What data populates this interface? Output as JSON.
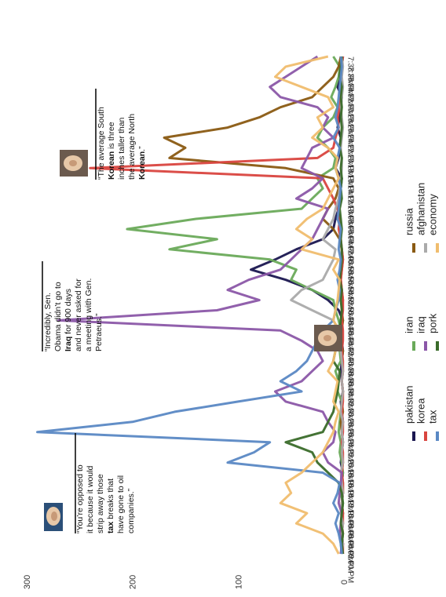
{
  "chart_data": {
    "type": "line",
    "title": "",
    "xlabel": "",
    "ylabel": "",
    "ylim": [
      0,
      300
    ],
    "y_ticks": [
      "0",
      "100",
      "200",
      "300"
    ],
    "orientation": "rotated-90-clockwise",
    "categories": [
      "6:00 PM",
      "6:02 PM",
      "6:04 PM",
      "6:06 PM",
      "6:08 PM",
      "6:10 PM",
      "6:12 PM",
      "6:14 PM",
      "6:16 PM",
      "6:18 PM",
      "6:20 PM",
      "6:22 PM",
      "6:24 PM",
      "6:26 PM",
      "6:28 PM",
      "6:30 PM",
      "6:32 PM",
      "6:34 PM",
      "6:36 PM",
      "6:38 PM",
      "6:40 PM",
      "6:42 PM",
      "6:44 PM",
      "6:46 PM",
      "6:48 PM",
      "6:50 PM",
      "6:52 PM",
      "6:54 PM",
      "6:56 PM",
      "6:58 PM",
      "7:00 PM",
      "7:02 PM",
      "7:04 PM",
      "7:06 PM",
      "7:08 PM",
      "7:10 PM",
      "7:12 PM",
      "7:14 PM",
      "7:16 PM",
      "7:18 PM",
      "7:20 PM",
      "7:22 PM",
      "7:24 PM",
      "7:26 PM",
      "7:28 PM",
      "7:30 PM",
      "7:32 PM",
      "7:34 PM",
      "7:36 PM",
      "7:38 PM"
    ],
    "series": [
      {
        "name": "pakistan",
        "color": "#1a1650",
        "values": [
          2,
          1,
          3,
          2,
          1,
          2,
          1,
          2,
          1,
          3,
          2,
          1,
          2,
          1,
          2,
          3,
          1,
          2,
          3,
          2,
          1,
          2,
          3,
          1,
          5,
          15,
          30,
          55,
          88,
          65,
          45,
          20,
          10,
          8,
          5,
          4,
          3,
          2,
          8,
          5,
          4,
          3,
          6,
          4,
          3,
          2,
          6,
          3,
          2,
          1
        ]
      },
      {
        "name": "iran",
        "color": "#6aaa5a",
        "values": [
          2,
          3,
          2,
          1,
          2,
          1,
          3,
          2,
          1,
          2,
          4,
          3,
          5,
          4,
          3,
          2,
          6,
          5,
          8,
          3,
          4,
          2,
          3,
          5,
          8,
          10,
          30,
          50,
          45,
          70,
          165,
          120,
          205,
          140,
          40,
          30,
          20,
          25,
          10,
          8,
          15,
          25,
          20,
          10,
          6,
          12,
          8,
          5,
          4,
          10
        ]
      },
      {
        "name": "russia",
        "color": "#8a5a12",
        "values": [
          1,
          2,
          1,
          2,
          1,
          2,
          1,
          1,
          2,
          1,
          2,
          1,
          2,
          3,
          1,
          2,
          1,
          2,
          1,
          2,
          1,
          3,
          2,
          1,
          2,
          1,
          2,
          3,
          2,
          1,
          2,
          4,
          10,
          20,
          15,
          8,
          5,
          10,
          55,
          165,
          150,
          170,
          110,
          80,
          60,
          30,
          20,
          10,
          5,
          3
        ]
      },
      {
        "name": "korea",
        "color": "#d9453f",
        "values": [
          1,
          1,
          2,
          1,
          1,
          2,
          1,
          1,
          2,
          1,
          1,
          2,
          1,
          1,
          2,
          1,
          1,
          2,
          1,
          1,
          2,
          1,
          1,
          2,
          1,
          1,
          2,
          3,
          2,
          1,
          2,
          3,
          5,
          4,
          6,
          10,
          15,
          20,
          240,
          25,
          10,
          8,
          5,
          6,
          4,
          3,
          2,
          3,
          2,
          1
        ]
      },
      {
        "name": "afghanistan",
        "color": "#aaaaaa",
        "values": [
          2,
          1,
          2,
          1,
          3,
          2,
          1,
          2,
          3,
          1,
          2,
          1,
          2,
          1,
          3,
          2,
          1,
          2,
          1,
          2,
          3,
          4,
          5,
          10,
          30,
          50,
          40,
          20,
          15,
          10,
          8,
          20,
          15,
          10,
          8,
          5,
          4,
          3,
          2,
          2,
          3,
          2,
          1,
          2,
          3,
          2,
          1,
          2,
          1,
          2
        ]
      },
      {
        "name": "iraq",
        "color": "#8b57a8",
        "values": [
          3,
          2,
          4,
          3,
          2,
          5,
          4,
          3,
          2,
          15,
          20,
          10,
          8,
          15,
          20,
          55,
          65,
          40,
          30,
          20,
          25,
          40,
          60,
          270,
          120,
          80,
          110,
          90,
          60,
          50,
          40,
          30,
          25,
          20,
          15,
          45,
          30,
          20,
          40,
          35,
          30,
          10,
          20,
          15,
          25,
          60,
          70,
          55,
          40,
          25
        ]
      },
      {
        "name": "pork",
        "color": "#3a6b2a",
        "values": [
          1,
          2,
          1,
          3,
          2,
          1,
          2,
          5,
          15,
          25,
          30,
          55,
          20,
          15,
          10,
          8,
          6,
          5,
          4,
          10,
          8,
          5,
          4,
          3,
          2,
          3,
          2,
          4,
          3,
          2,
          2,
          3,
          2,
          3,
          4,
          2,
          3,
          2,
          3,
          2,
          4,
          3,
          2,
          3,
          2,
          3,
          2,
          4,
          3,
          2
        ]
      },
      {
        "name": "tax",
        "color": "#5a88c4",
        "values": [
          2,
          3,
          5,
          8,
          5,
          10,
          6,
          4,
          20,
          110,
          85,
          70,
          290,
          200,
          160,
          100,
          40,
          60,
          45,
          35,
          30,
          25,
          20,
          10,
          8,
          5,
          4,
          6,
          4,
          3,
          5,
          4,
          3,
          6,
          5,
          4,
          3,
          5,
          8,
          6,
          4,
          10,
          5,
          8,
          6,
          5,
          4,
          3,
          2,
          3
        ]
      },
      {
        "name": "economy",
        "color": "#f0bd6e",
        "values": [
          5,
          10,
          20,
          45,
          35,
          60,
          50,
          55,
          40,
          30,
          20,
          15,
          10,
          8,
          5,
          10,
          8,
          6,
          15,
          10,
          8,
          5,
          4,
          10,
          8,
          6,
          5,
          4,
          10,
          5,
          40,
          30,
          45,
          35,
          20,
          15,
          10,
          5,
          8,
          6,
          15,
          30,
          20,
          25,
          10,
          15,
          40,
          65,
          55,
          15
        ]
      }
    ]
  },
  "quotes": [
    {
      "pre": "“You’re opposed to",
      "l2": "it because it would",
      "l3": "strip away those",
      "bold": "tax",
      "boldrest": " breaks that",
      "l5": "have gone to oil",
      "l6": "companies.”",
      "speaker_icon": "obama-avatar-icon"
    },
    {
      "l1": "“Incredibly, Sen.",
      "l2": "Obama didn’t go to",
      "bold": "Iraq",
      "boldrest": " for 900 days",
      "l4": "and never asked for",
      "l5": "a meeting with Gen.",
      "l6": "Petraeus.”",
      "speaker_icon": "mccain-avatar-icon"
    },
    {
      "l1": "“The average South",
      "bold1": "Korean",
      "bold1rest": " is three",
      "l3": "inches taller than",
      "l4": "the average North",
      "bold2": "Korean",
      "bold2rest": ".”",
      "speaker_icon": "mccain-avatar-icon"
    }
  ]
}
